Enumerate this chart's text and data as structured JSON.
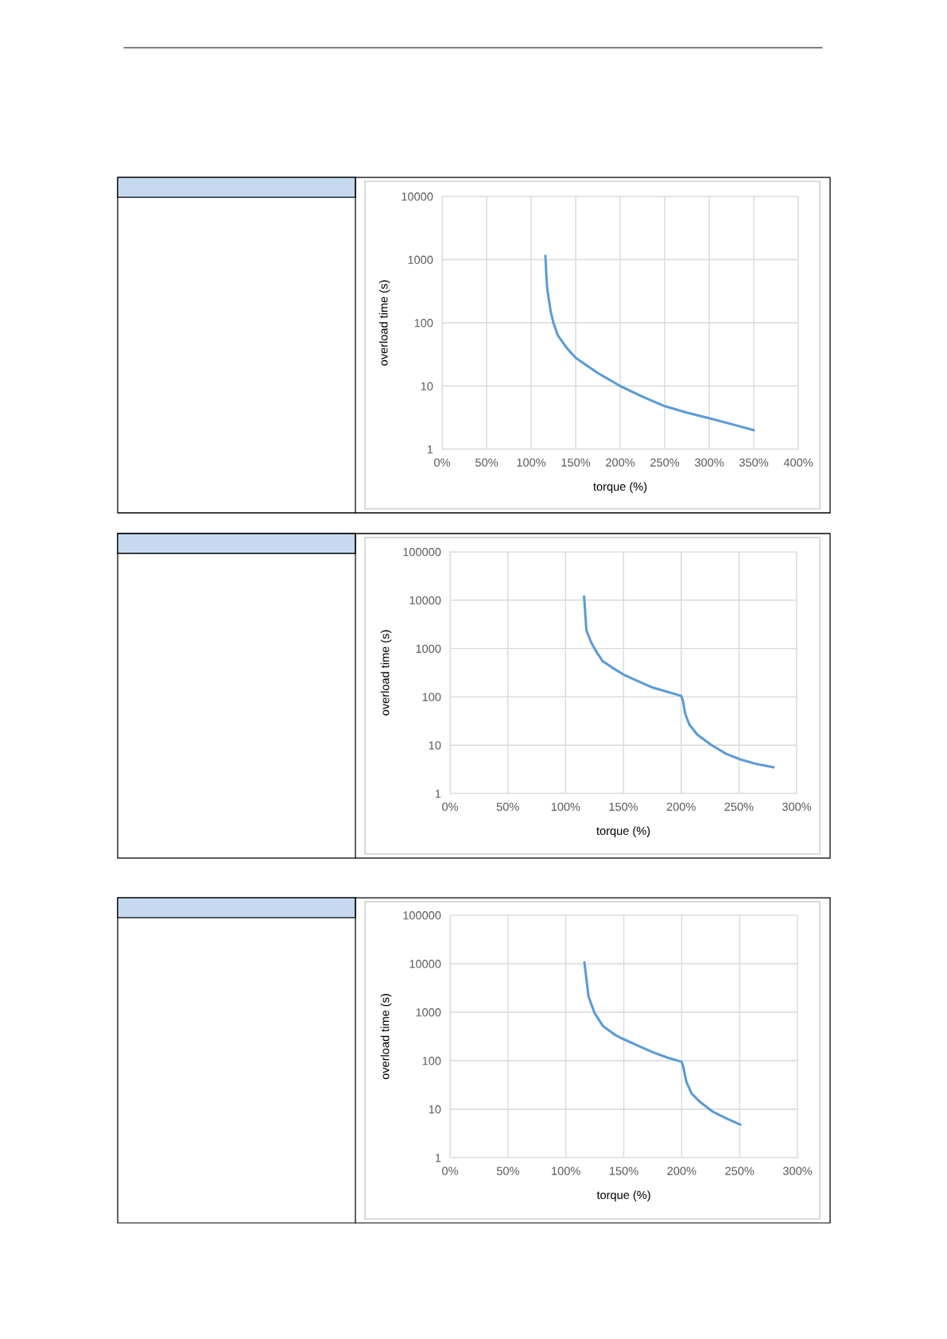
{
  "chart_data": [
    {
      "type": "line",
      "xlabel": "torque (%)",
      "ylabel": "overload time (s)",
      "log": "y",
      "grid": true,
      "legend": false,
      "xlim": [
        0,
        400
      ],
      "ylim": [
        1,
        10000
      ],
      "xticks": [
        {
          "value": 0,
          "label": "0%"
        },
        {
          "value": 50,
          "label": "50%"
        },
        {
          "value": 100,
          "label": "100%"
        },
        {
          "value": 150,
          "label": "150%"
        },
        {
          "value": 200,
          "label": "200%"
        },
        {
          "value": 250,
          "label": "250%"
        },
        {
          "value": 300,
          "label": "300%"
        },
        {
          "value": 350,
          "label": "350%"
        },
        {
          "value": 400,
          "label": "400%"
        }
      ],
      "yticks": [
        1,
        10,
        100,
        1000,
        10000
      ],
      "series": [
        {
          "color": "#5b9bd5",
          "x": [
            116,
            117,
            118,
            120,
            122,
            125,
            130,
            140,
            150,
            175,
            200,
            225,
            250,
            275,
            300,
            325,
            350
          ],
          "values": [
            1150,
            600,
            350,
            230,
            150,
            100,
            63,
            40,
            28,
            16,
            10,
            6.8,
            4.8,
            3.8,
            3.1,
            2.5,
            2
          ]
        }
      ]
    },
    {
      "type": "line",
      "xlabel": "torque (%)",
      "ylabel": "overload time (s)",
      "log": "y",
      "grid": true,
      "legend": false,
      "xlim": [
        0,
        300
      ],
      "ylim": [
        1,
        100000
      ],
      "xticks": [
        {
          "value": 0,
          "label": "0%"
        },
        {
          "value": 50,
          "label": "50%"
        },
        {
          "value": 100,
          "label": "100%"
        },
        {
          "value": 150,
          "label": "150%"
        },
        {
          "value": 200,
          "label": "200%"
        },
        {
          "value": 250,
          "label": "250%"
        },
        {
          "value": 300,
          "label": "300%"
        }
      ],
      "yticks": [
        1,
        10,
        100,
        1000,
        10000,
        100000
      ],
      "series": [
        {
          "color": "#5b9bd5",
          "x": [
            116,
            118,
            122,
            127,
            132,
            142,
            150,
            163,
            175.5,
            188,
            200,
            201.5,
            203.6,
            207,
            214,
            226.5,
            239,
            252,
            265,
            280
          ],
          "values": [
            12000,
            2400,
            1350,
            830,
            550,
            380,
            290,
            210,
            155,
            127,
            105,
            83,
            44,
            27,
            16.5,
            10,
            6.6,
            5,
            4.1,
            3.5
          ]
        }
      ]
    },
    {
      "type": "line",
      "xlabel": "torque (%)",
      "ylabel": "overload time (s)",
      "log": "y",
      "grid": true,
      "legend": false,
      "xlim": [
        0,
        300
      ],
      "ylim": [
        1,
        100000
      ],
      "xticks": [
        {
          "value": 0,
          "label": "0%"
        },
        {
          "value": 50,
          "label": "50%"
        },
        {
          "value": 100,
          "label": "100%"
        },
        {
          "value": 150,
          "label": "150%"
        },
        {
          "value": 200,
          "label": "200%"
        },
        {
          "value": 250,
          "label": "250%"
        },
        {
          "value": 300,
          "label": "300%"
        }
      ],
      "yticks": [
        1,
        10,
        100,
        1000,
        10000,
        100000
      ],
      "series": [
        {
          "color": "#5b9bd5",
          "x": [
            116,
            119.6,
            124.7,
            132,
            142.5,
            150,
            163,
            175.6,
            188,
            200,
            201.5,
            204,
            208.6,
            216,
            226.5,
            239,
            250.6
          ],
          "values": [
            10700,
            2100,
            970,
            520,
            340,
            277,
            200,
            148,
            115,
            95,
            73,
            37,
            21,
            14,
            9,
            6.4,
            4.8
          ]
        }
      ]
    }
  ]
}
